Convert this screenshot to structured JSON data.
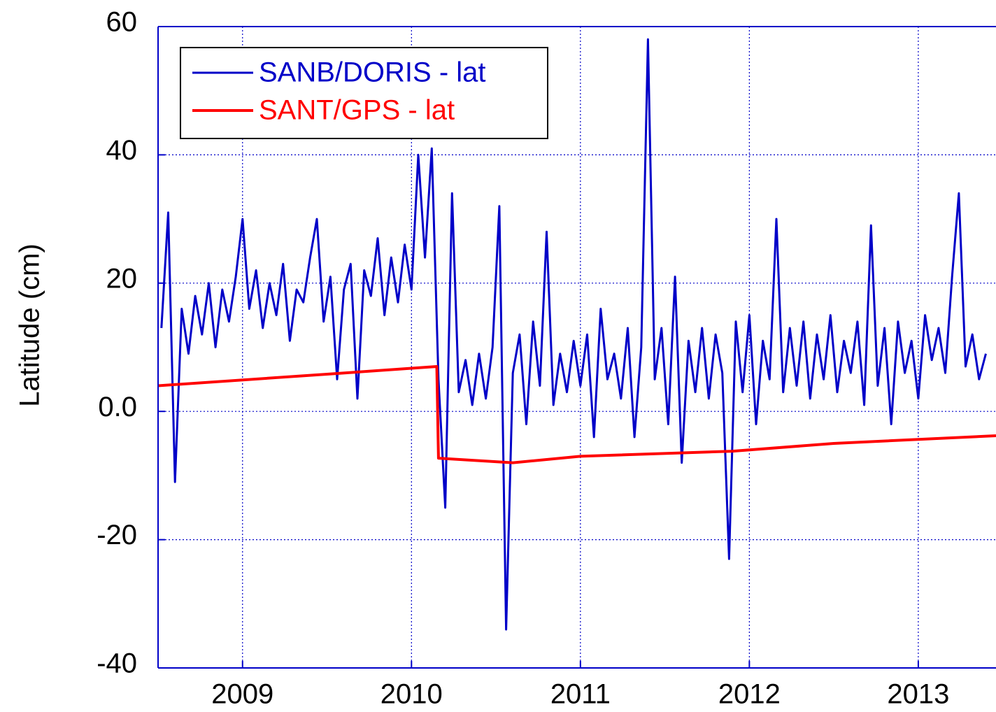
{
  "chart_data": {
    "type": "line",
    "y_label": "Latitude (cm)",
    "xlim": [
      2008.5,
      2013.46
    ],
    "xticks": [
      2009,
      2010,
      2011,
      2012,
      2013
    ],
    "ylim": [
      -40,
      60
    ],
    "yticks": [
      -40,
      -20,
      {
        "value": 0,
        "label": "0.0"
      },
      20,
      40,
      60
    ],
    "grid": true,
    "legend": "upper left",
    "series": [
      {
        "name": "SANB/DORIS - lat",
        "color": "#0000c8",
        "x": [
          2008.52,
          2008.56,
          2008.6,
          2008.64,
          2008.68,
          2008.72,
          2008.76,
          2008.8,
          2008.84,
          2008.88,
          2008.92,
          2008.96,
          2009.0,
          2009.04,
          2009.08,
          2009.12,
          2009.16,
          2009.2,
          2009.24,
          2009.28,
          2009.32,
          2009.36,
          2009.4,
          2009.44,
          2009.48,
          2009.52,
          2009.56,
          2009.6,
          2009.64,
          2009.68,
          2009.72,
          2009.76,
          2009.8,
          2009.84,
          2009.88,
          2009.92,
          2009.96,
          2010.0,
          2010.04,
          2010.08,
          2010.12,
          2010.16,
          2010.2,
          2010.24,
          2010.28,
          2010.32,
          2010.36,
          2010.4,
          2010.44,
          2010.48,
          2010.52,
          2010.56,
          2010.6,
          2010.64,
          2010.68,
          2010.72,
          2010.76,
          2010.8,
          2010.84,
          2010.88,
          2010.92,
          2010.96,
          2011.0,
          2011.04,
          2011.08,
          2011.12,
          2011.16,
          2011.2,
          2011.24,
          2011.28,
          2011.32,
          2011.36,
          2011.4,
          2011.44,
          2011.48,
          2011.52,
          2011.56,
          2011.6,
          2011.64,
          2011.68,
          2011.72,
          2011.76,
          2011.8,
          2011.84,
          2011.88,
          2011.92,
          2011.96,
          2012.0,
          2012.04,
          2012.08,
          2012.12,
          2012.16,
          2012.2,
          2012.24,
          2012.28,
          2012.32,
          2012.36,
          2012.4,
          2012.44,
          2012.48,
          2012.52,
          2012.56,
          2012.6,
          2012.64,
          2012.68,
          2012.72,
          2012.76,
          2012.8,
          2012.84,
          2012.88,
          2012.92,
          2012.96,
          2013.0,
          2013.04,
          2013.08,
          2013.12,
          2013.16,
          2013.2,
          2013.24,
          2013.28,
          2013.32,
          2013.36,
          2013.4
        ],
        "values": [
          13,
          31,
          -11,
          16,
          9,
          18,
          12,
          20,
          10,
          19,
          14,
          21,
          30,
          16,
          22,
          13,
          20,
          15,
          23,
          11,
          19,
          17,
          24,
          30,
          14,
          21,
          5,
          19,
          23,
          2,
          22,
          18,
          27,
          15,
          24,
          17,
          26,
          19,
          40,
          24,
          41,
          5,
          -15,
          34,
          3,
          8,
          1,
          9,
          2,
          10,
          32,
          -34,
          6,
          12,
          -2,
          14,
          4,
          28,
          1,
          9,
          3,
          11,
          4,
          12,
          -4,
          16,
          5,
          9,
          2,
          13,
          -4,
          10,
          58,
          5,
          13,
          -2,
          21,
          -8,
          11,
          3,
          13,
          2,
          12,
          6,
          -23,
          14,
          3,
          15,
          -2,
          11,
          5,
          30,
          3,
          13,
          4,
          14,
          2,
          12,
          5,
          15,
          3,
          11,
          6,
          14,
          1,
          29,
          4,
          13,
          -2,
          14,
          6,
          11,
          2,
          15,
          8,
          13,
          6,
          21,
          34,
          7,
          12,
          5,
          9
        ]
      },
      {
        "name": "SANT/GPS - lat",
        "color": "#ff0000",
        "x": [
          2008.5,
          2009.5,
          2010.15,
          2010.16,
          2010.6,
          2011.0,
          2011.9,
          2012.5,
          2013.46
        ],
        "values": [
          4,
          5.8,
          7,
          -7.3,
          -8,
          -7,
          -6.2,
          -5,
          -3.8
        ]
      }
    ]
  }
}
